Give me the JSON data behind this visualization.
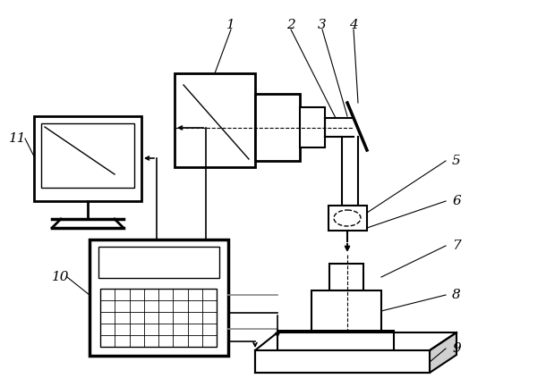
{
  "bg_color": "#ffffff",
  "line_color": "#000000",
  "label_color": "#000000",
  "fig_w": 6.1,
  "fig_h": 4.33,
  "dpi": 100
}
